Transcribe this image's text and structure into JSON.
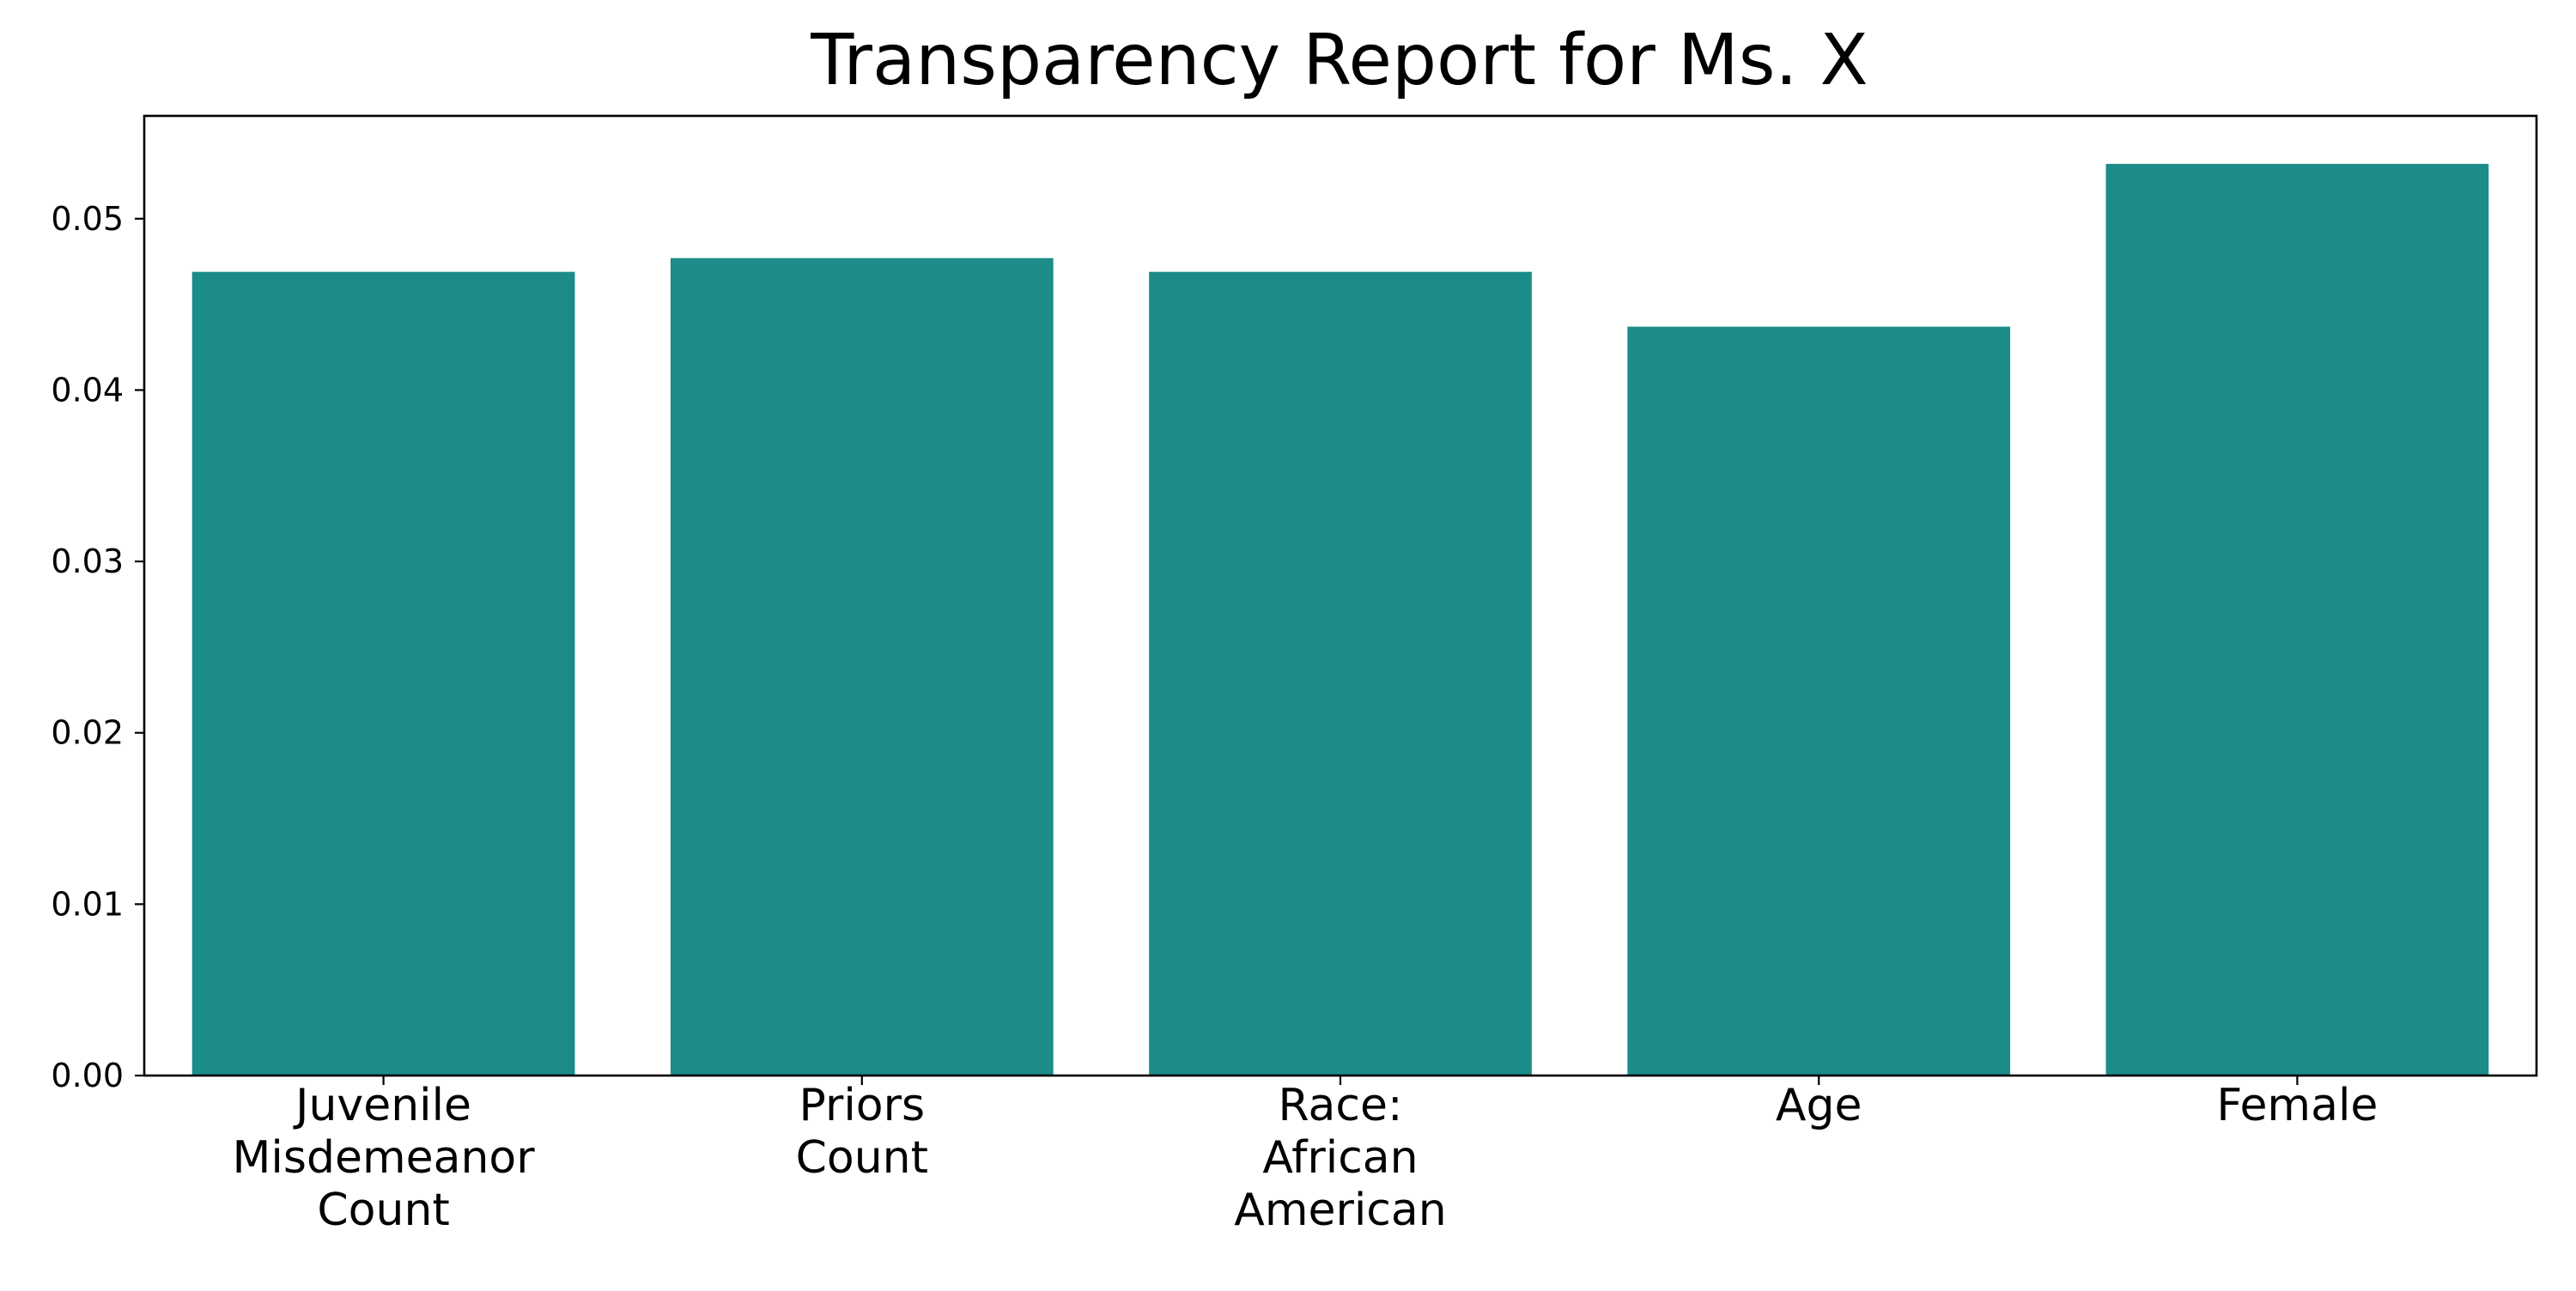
{
  "chart_data": {
    "type": "bar",
    "title": "Transparency Report for Ms. X",
    "categories": [
      [
        "Juvenile",
        "Misdemeanor",
        "Count"
      ],
      [
        "Priors",
        "Count"
      ],
      [
        "Race:",
        "African",
        "American"
      ],
      [
        "Age"
      ],
      [
        "Female"
      ]
    ],
    "values": [
      0.0469,
      0.0477,
      0.0469,
      0.0437,
      0.0532
    ],
    "ylim": [
      0,
      0.056
    ],
    "yticks": [
      "0.00",
      "0.01",
      "0.02",
      "0.03",
      "0.04",
      "0.05"
    ],
    "ytick_values": [
      0,
      0.01,
      0.02,
      0.03,
      0.04,
      0.05
    ],
    "xlabel": "",
    "ylabel": "",
    "grid": false,
    "legend": "none",
    "bar_color": "#1b8c8a"
  }
}
